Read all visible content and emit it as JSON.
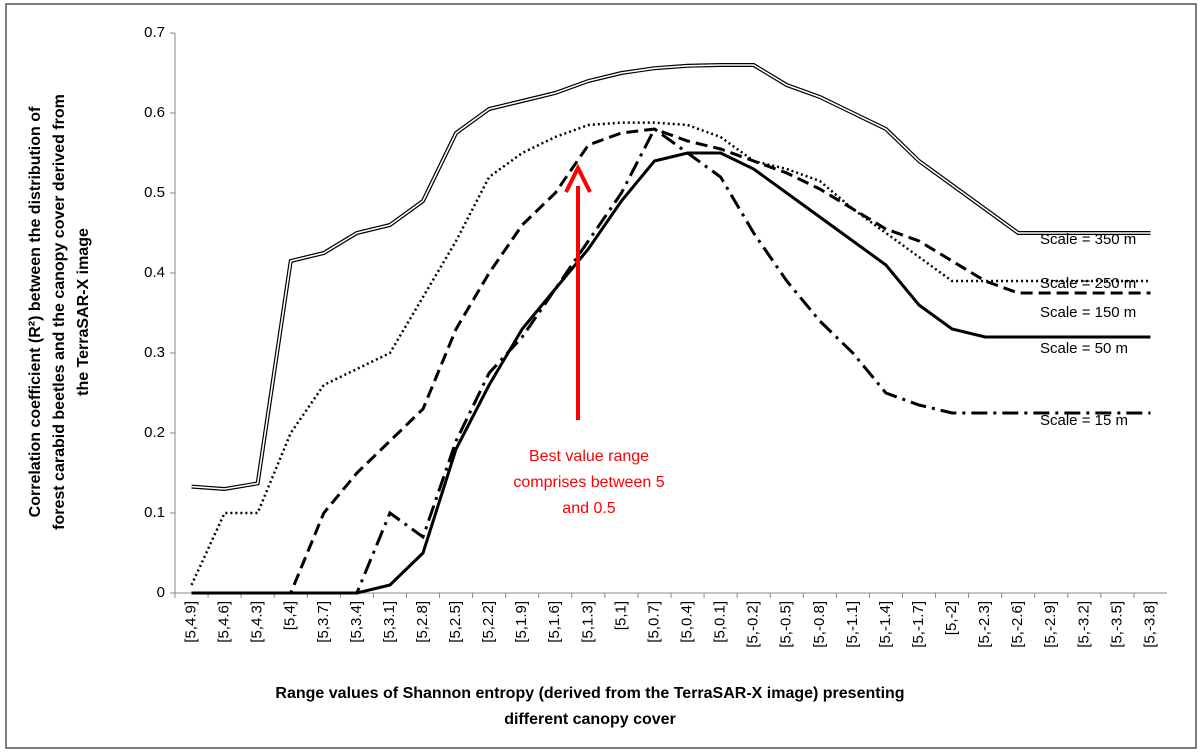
{
  "chart_data": {
    "type": "line",
    "annotation": [
      "Best value range",
      "comprises between 5",
      "and 0.5"
    ],
    "annotation_color": "#ff0000",
    "xlabel": [
      "Range values of Shannon entropy (derived from the TerraSAR-X image) presenting",
      "different canopy cover"
    ],
    "ylabel": [
      "Correlation coefficient (R²) between the distribution of",
      "forest carabid beetles and the canopy cover derived from",
      "the TerraSAR-X image"
    ],
    "categories": [
      "[5,4.9]",
      "[5,4.6]",
      "[5,4.3]",
      "[5,4]",
      "[5,3.7]",
      "[5,3.4]",
      "[5,3.1]",
      "[5,2.8]",
      "[5,2.5]",
      "[5,2.2]",
      "[5,1.9]",
      "[5,1.6]",
      "[5,1.3]",
      "[5,1]",
      "[5,0.7]",
      "[5,0.4]",
      "[5,0.1]",
      "[5,-0.2]",
      "[5,-0.5]",
      "[5,-0.8]",
      "[5,-1.1]",
      "[5,-1.4]",
      "[5,-1.7]",
      "[5,-2]",
      "[5,-2.3]",
      "[5,-2.6]",
      "[5,-2.9]",
      "[5,-3.2]",
      "[5,-3.5]",
      "[5,-3.8]"
    ],
    "ylim": [
      0,
      0.7
    ],
    "yticks": [
      0,
      0.1,
      0.2,
      0.3,
      0.4,
      0.5,
      0.6,
      0.7
    ],
    "grid": false,
    "series": [
      {
        "name": "Scale = 350 m",
        "color": "#000000",
        "style": "double",
        "values": [
          0.133,
          0.13,
          0.137,
          0.415,
          0.425,
          0.45,
          0.46,
          0.49,
          0.575,
          0.605,
          0.615,
          0.625,
          0.64,
          0.65,
          0.656,
          0.659,
          0.66,
          0.66,
          0.635,
          0.62,
          0.6,
          0.58,
          0.54,
          0.51,
          0.48,
          0.45,
          0.45,
          0.45,
          0.45,
          0.45
        ]
      },
      {
        "name": "Scale = 250 m",
        "color": "#000000",
        "style": "dotted",
        "values": [
          0.01,
          0.1,
          0.1,
          0.2,
          0.26,
          0.28,
          0.3,
          0.37,
          0.44,
          0.52,
          0.55,
          0.57,
          0.585,
          0.588,
          0.588,
          0.585,
          0.57,
          0.54,
          0.53,
          0.515,
          0.48,
          0.45,
          0.42,
          0.39,
          0.39,
          0.39,
          0.39,
          0.39,
          0.39,
          0.39
        ]
      },
      {
        "name": "Scale = 150 m",
        "color": "#000000",
        "style": "dashed",
        "values": [
          0,
          0,
          0,
          0,
          0.1,
          0.15,
          0.19,
          0.23,
          0.33,
          0.4,
          0.46,
          0.5,
          0.56,
          0.575,
          0.58,
          0.565,
          0.555,
          0.54,
          0.525,
          0.505,
          0.48,
          0.455,
          0.44,
          0.415,
          0.39,
          0.375,
          0.375,
          0.375,
          0.375,
          0.375
        ]
      },
      {
        "name": "Scale = 50 m",
        "color": "#000000",
        "style": "solid",
        "values": [
          0,
          0,
          0,
          0,
          0,
          0,
          0.01,
          0.05,
          0.18,
          0.26,
          0.33,
          0.38,
          0.43,
          0.49,
          0.54,
          0.55,
          0.55,
          0.53,
          0.5,
          0.47,
          0.44,
          0.41,
          0.36,
          0.33,
          0.32,
          0.32,
          0.32,
          0.32,
          0.32,
          0.32
        ]
      },
      {
        "name": "Scale = 15 m",
        "color": "#000000",
        "style": "dashdot",
        "values": [
          0,
          0,
          0,
          0,
          0,
          0,
          0.1,
          0.07,
          0.19,
          0.275,
          0.32,
          0.38,
          0.44,
          0.5,
          0.58,
          0.55,
          0.52,
          0.45,
          0.39,
          0.34,
          0.3,
          0.25,
          0.235,
          0.225,
          0.225,
          0.225,
          0.225,
          0.225,
          0.225,
          0.225
        ]
      }
    ]
  }
}
